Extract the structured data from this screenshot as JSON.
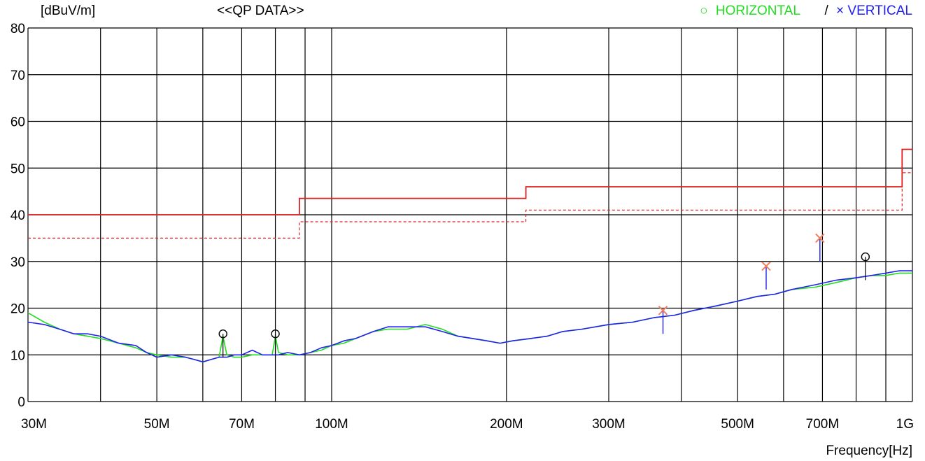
{
  "header": {
    "unit_label": "[dBuV/m]",
    "title": "<<QP DATA>>",
    "legend_horizontal_symbol": "○",
    "legend_horizontal": "HORIZONTAL",
    "legend_separator": "/",
    "legend_vertical_symbol": "×",
    "legend_vertical": "VERTICAL"
  },
  "colors": {
    "horizontal": "#22dd22",
    "vertical": "#2222ee",
    "limit": "#e02020",
    "marker_vertical": "#f08060",
    "grid": "#000000"
  },
  "chart_data": {
    "type": "line",
    "xlabel": "Frequency[Hz]",
    "x_scale": "log",
    "xlim": [
      30,
      1000
    ],
    "ylim": [
      0,
      80
    ],
    "grid": true,
    "legend_placement": "top-right",
    "y_ticks": [
      0,
      10,
      20,
      30,
      40,
      50,
      60,
      70,
      80
    ],
    "y_tick_labels": [
      "0",
      "10",
      "20",
      "30",
      "40",
      "50",
      "60",
      "70",
      "80"
    ],
    "x_gridlines": [
      30,
      40,
      50,
      60,
      70,
      80,
      90,
      100,
      200,
      300,
      400,
      500,
      600,
      700,
      800,
      900,
      1000
    ],
    "x_tick_labels": [
      {
        "x": 30,
        "label": "30M"
      },
      {
        "x": 50,
        "label": "50M"
      },
      {
        "x": 70,
        "label": "70M"
      },
      {
        "x": 100,
        "label": "100M"
      },
      {
        "x": 200,
        "label": "200M"
      },
      {
        "x": 300,
        "label": "300M"
      },
      {
        "x": 500,
        "label": "500M"
      },
      {
        "x": 700,
        "label": "700M"
      },
      {
        "x": 1000,
        "label": "1G"
      }
    ],
    "limit_line": {
      "points": [
        [
          30,
          40
        ],
        [
          88,
          40
        ],
        [
          88,
          43.5
        ],
        [
          216,
          43.5
        ],
        [
          216,
          46
        ],
        [
          960,
          46
        ],
        [
          960,
          54
        ],
        [
          1000,
          54
        ]
      ]
    },
    "margin_line": {
      "points": [
        [
          30,
          35
        ],
        [
          88,
          35
        ],
        [
          88,
          38.5
        ],
        [
          216,
          38.5
        ],
        [
          216,
          41
        ],
        [
          960,
          41
        ],
        [
          960,
          49
        ],
        [
          1000,
          49
        ]
      ]
    },
    "series": [
      {
        "name": "HORIZONTAL",
        "points": [
          [
            30,
            19
          ],
          [
            32,
            17
          ],
          [
            34,
            15.5
          ],
          [
            36,
            14.5
          ],
          [
            38,
            14
          ],
          [
            40,
            13.5
          ],
          [
            43,
            12.5
          ],
          [
            46,
            11.5
          ],
          [
            48,
            10.5
          ],
          [
            50,
            10
          ],
          [
            53,
            9.5
          ],
          [
            56,
            9.5
          ],
          [
            58,
            9
          ],
          [
            60,
            8.5
          ],
          [
            62,
            9
          ],
          [
            64,
            9.5
          ],
          [
            65,
            14
          ],
          [
            66,
            10
          ],
          [
            68,
            9.5
          ],
          [
            70,
            9.5
          ],
          [
            73,
            10
          ],
          [
            76,
            10
          ],
          [
            79,
            10
          ],
          [
            80,
            14
          ],
          [
            81,
            10.5
          ],
          [
            84,
            10
          ],
          [
            88,
            10
          ],
          [
            92,
            10.5
          ],
          [
            96,
            11
          ],
          [
            100,
            12
          ],
          [
            105,
            12.5
          ],
          [
            110,
            13.5
          ],
          [
            118,
            15
          ],
          [
            125,
            15.5
          ],
          [
            135,
            15.5
          ],
          [
            145,
            16.5
          ],
          [
            155,
            15.5
          ],
          [
            165,
            14
          ],
          [
            175,
            13.5
          ],
          [
            185,
            13
          ],
          [
            195,
            12.5
          ],
          [
            205,
            13
          ],
          [
            220,
            13.5
          ],
          [
            235,
            14
          ],
          [
            250,
            15
          ],
          [
            270,
            15.5
          ],
          [
            300,
            16.5
          ],
          [
            330,
            17
          ],
          [
            360,
            18
          ],
          [
            390,
            18.5
          ],
          [
            420,
            19.5
          ],
          [
            460,
            20.5
          ],
          [
            500,
            21.5
          ],
          [
            540,
            22.5
          ],
          [
            580,
            23
          ],
          [
            620,
            24
          ],
          [
            680,
            24.5
          ],
          [
            740,
            25.5
          ],
          [
            800,
            26.5
          ],
          [
            850,
            27
          ],
          [
            900,
            27
          ],
          [
            950,
            27.5
          ],
          [
            1000,
            27.5
          ]
        ]
      },
      {
        "name": "VERTICAL",
        "points": [
          [
            30,
            17
          ],
          [
            32,
            16.5
          ],
          [
            34,
            15.5
          ],
          [
            36,
            14.5
          ],
          [
            38,
            14.5
          ],
          [
            40,
            14
          ],
          [
            43,
            12.5
          ],
          [
            46,
            12
          ],
          [
            48,
            10.5
          ],
          [
            50,
            9.5
          ],
          [
            53,
            10
          ],
          [
            56,
            9.5
          ],
          [
            58,
            9
          ],
          [
            60,
            8.5
          ],
          [
            62,
            9
          ],
          [
            64,
            9.5
          ],
          [
            66,
            9.5
          ],
          [
            68,
            10
          ],
          [
            70,
            10
          ],
          [
            73,
            11
          ],
          [
            76,
            10
          ],
          [
            79,
            10
          ],
          [
            81,
            10
          ],
          [
            84,
            10.5
          ],
          [
            88,
            10
          ],
          [
            92,
            10.5
          ],
          [
            96,
            11.5
          ],
          [
            100,
            12
          ],
          [
            105,
            13
          ],
          [
            110,
            13.5
          ],
          [
            118,
            15
          ],
          [
            125,
            16
          ],
          [
            135,
            16
          ],
          [
            145,
            16
          ],
          [
            155,
            15
          ],
          [
            165,
            14
          ],
          [
            175,
            13.5
          ],
          [
            185,
            13
          ],
          [
            195,
            12.5
          ],
          [
            205,
            13
          ],
          [
            220,
            13.5
          ],
          [
            235,
            14
          ],
          [
            250,
            15
          ],
          [
            270,
            15.5
          ],
          [
            300,
            16.5
          ],
          [
            330,
            17
          ],
          [
            360,
            18
          ],
          [
            390,
            18.5
          ],
          [
            420,
            19.5
          ],
          [
            460,
            20.5
          ],
          [
            500,
            21.5
          ],
          [
            540,
            22.5
          ],
          [
            580,
            23
          ],
          [
            620,
            24
          ],
          [
            680,
            25
          ],
          [
            740,
            26
          ],
          [
            800,
            26.5
          ],
          [
            850,
            27
          ],
          [
            900,
            27.5
          ],
          [
            950,
            28
          ],
          [
            1000,
            28
          ]
        ]
      }
    ],
    "peaks_horizontal": [
      {
        "x": 65,
        "y": 14.5
      },
      {
        "x": 80,
        "y": 14.5
      },
      {
        "x": 830,
        "y": 31
      }
    ],
    "peaks_vertical": [
      {
        "x": 372,
        "y": 19.5
      },
      {
        "x": 560,
        "y": 29
      },
      {
        "x": 693,
        "y": 35
      }
    ]
  }
}
